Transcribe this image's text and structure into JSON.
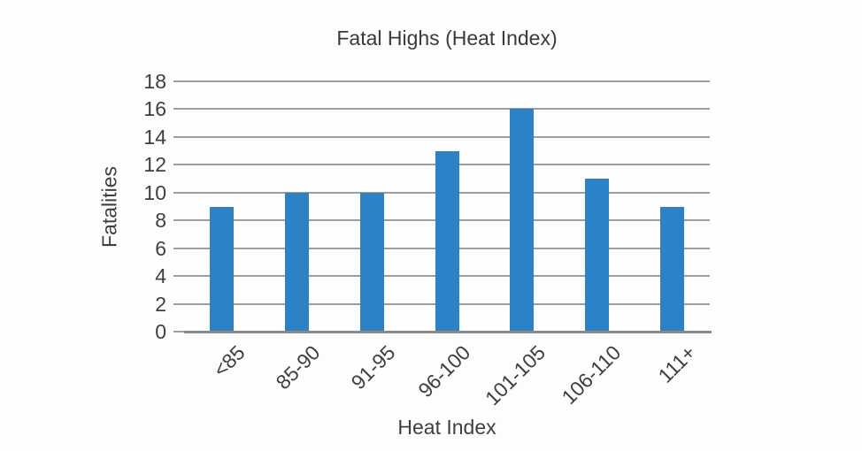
{
  "chart_data": {
    "type": "bar",
    "title": "Fatal Highs (Heat Index)",
    "xlabel": "Heat Index",
    "ylabel": "Fatalities",
    "categories": [
      "<85",
      "85-90",
      "91-95",
      "96-100",
      "101-105",
      "106-110",
      "111+"
    ],
    "values": [
      9,
      10,
      10,
      13,
      16,
      11,
      9
    ],
    "ylim": [
      0,
      18
    ],
    "ytick_step": 2,
    "ytick_labels": [
      "0",
      "2",
      "4",
      "6",
      "8",
      "10",
      "12",
      "14",
      "16",
      "18"
    ],
    "grid": true,
    "legend": "none",
    "colors": {
      "bar": "#2c82c4",
      "gridline": "#9d9d9d",
      "axis_line": "#8a8a8a",
      "text": "#3f3f3f"
    }
  }
}
